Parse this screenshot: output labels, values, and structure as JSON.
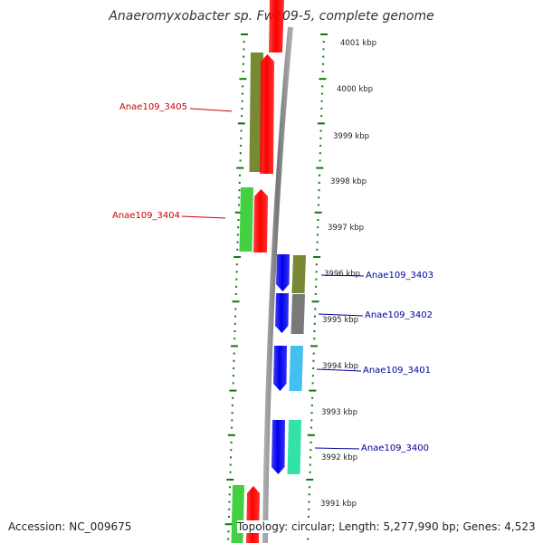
{
  "header": {
    "title": "Anaeromyxobacter sp. Fw109-5, complete genome"
  },
  "footer": {
    "accession": "Accession: NC_009675",
    "summary": "Topology: circular; Length: 5,277,990 bp; Genes: 4,523"
  },
  "map": {
    "ticks": [
      {
        "label": "4001 kbp"
      },
      {
        "label": "4000 kbp"
      },
      {
        "label": "3999 kbp"
      },
      {
        "label": "3998 kbp"
      },
      {
        "label": "3997 kbp"
      },
      {
        "label": "3996 kbp"
      },
      {
        "label": "3995 kbp"
      },
      {
        "label": "3994 kbp"
      },
      {
        "label": "3993 kbp"
      },
      {
        "label": "3992 kbp"
      },
      {
        "label": "3991 kbp"
      }
    ],
    "genes": [
      {
        "label": "Anae109_3405",
        "strand": "reverse",
        "cog_color": "#6b7f22"
      },
      {
        "label": "Anae109_3404",
        "strand": "reverse",
        "cog_color": "#33cc33"
      },
      {
        "label": "Anae109_3403",
        "strand": "forward",
        "cog_color": "#6b7f22"
      },
      {
        "label": "Anae109_3402",
        "strand": "forward",
        "cog_color": "#6e6e6e"
      },
      {
        "label": "Anae109_3401",
        "strand": "forward",
        "cog_color": "#33bbee"
      },
      {
        "label": "Anae109_3400",
        "strand": "forward",
        "cog_color": "#22e0a0"
      }
    ],
    "colors": {
      "reverse_label": "#cc0000",
      "forward_label": "#000099",
      "reverse_strand": "#ff0000",
      "forward_strand": "#0000ee",
      "backbone": "#888888",
      "ruler": "#117711"
    }
  }
}
